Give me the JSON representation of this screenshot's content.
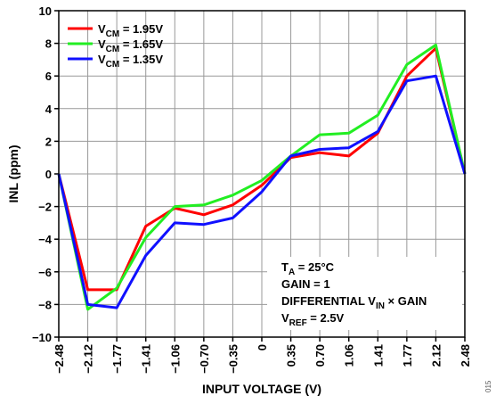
{
  "chart_data": {
    "type": "line",
    "title": "",
    "xlabel": "INPUT VOLTAGE (V)",
    "ylabel": "INL (ppm)",
    "ylim": [
      -10,
      10
    ],
    "yticks": [
      10,
      8,
      6,
      4,
      2,
      0,
      -2,
      -4,
      -6,
      -8,
      -10
    ],
    "ytick_labels": [
      "10",
      "8",
      "6",
      "4",
      "2",
      "0",
      "−2",
      "−4",
      "−6",
      "−8",
      "−10"
    ],
    "categories": [
      "−2.48",
      "−2.12",
      "−1.77",
      "−1.41",
      "−1.06",
      "−0.70",
      "−0.35",
      "0",
      "0.35",
      "0.70",
      "1.06",
      "1.41",
      "1.77",
      "2.12",
      "2.48"
    ],
    "grid": true,
    "legend_position": "top-left",
    "series": [
      {
        "name": "V",
        "sub": "CM",
        "suffix": " = 1.95V",
        "color": "#ff0000",
        "values": [
          0,
          -7.1,
          -7.1,
          -3.2,
          -2.1,
          -2.5,
          -1.9,
          -0.7,
          1.0,
          1.3,
          1.1,
          2.5,
          6.0,
          7.7,
          0
        ]
      },
      {
        "name": "V",
        "sub": "CM",
        "suffix": " = 1.65V",
        "color": "#22ee22",
        "values": [
          0,
          -8.3,
          -7.0,
          -3.9,
          -2.0,
          -1.9,
          -1.3,
          -0.4,
          1.1,
          2.4,
          2.5,
          3.6,
          6.7,
          7.9,
          0
        ]
      },
      {
        "name": "V",
        "sub": "CM",
        "suffix": " = 1.35V",
        "color": "#1010ff",
        "values": [
          0,
          -8.0,
          -8.2,
          -5.0,
          -3.0,
          -3.1,
          -2.7,
          -1.1,
          1.1,
          1.5,
          1.6,
          2.6,
          5.7,
          6.0,
          0
        ]
      }
    ],
    "annotations": [
      {
        "parts": [
          [
            "T",
            "n"
          ],
          [
            "A",
            "sub"
          ],
          [
            " = 25°C",
            "n"
          ]
        ]
      },
      {
        "parts": [
          [
            "GAIN = 1",
            "n"
          ]
        ]
      },
      {
        "parts": [
          [
            "DIFFERENTIAL V",
            "n"
          ],
          [
            "IN",
            "sub"
          ],
          [
            " × GAIN",
            "n"
          ]
        ]
      },
      {
        "parts": [
          [
            "V",
            "n"
          ],
          [
            "REF",
            "sub"
          ],
          [
            " = 2.5V",
            "n"
          ]
        ]
      }
    ]
  },
  "figure_id": "015"
}
